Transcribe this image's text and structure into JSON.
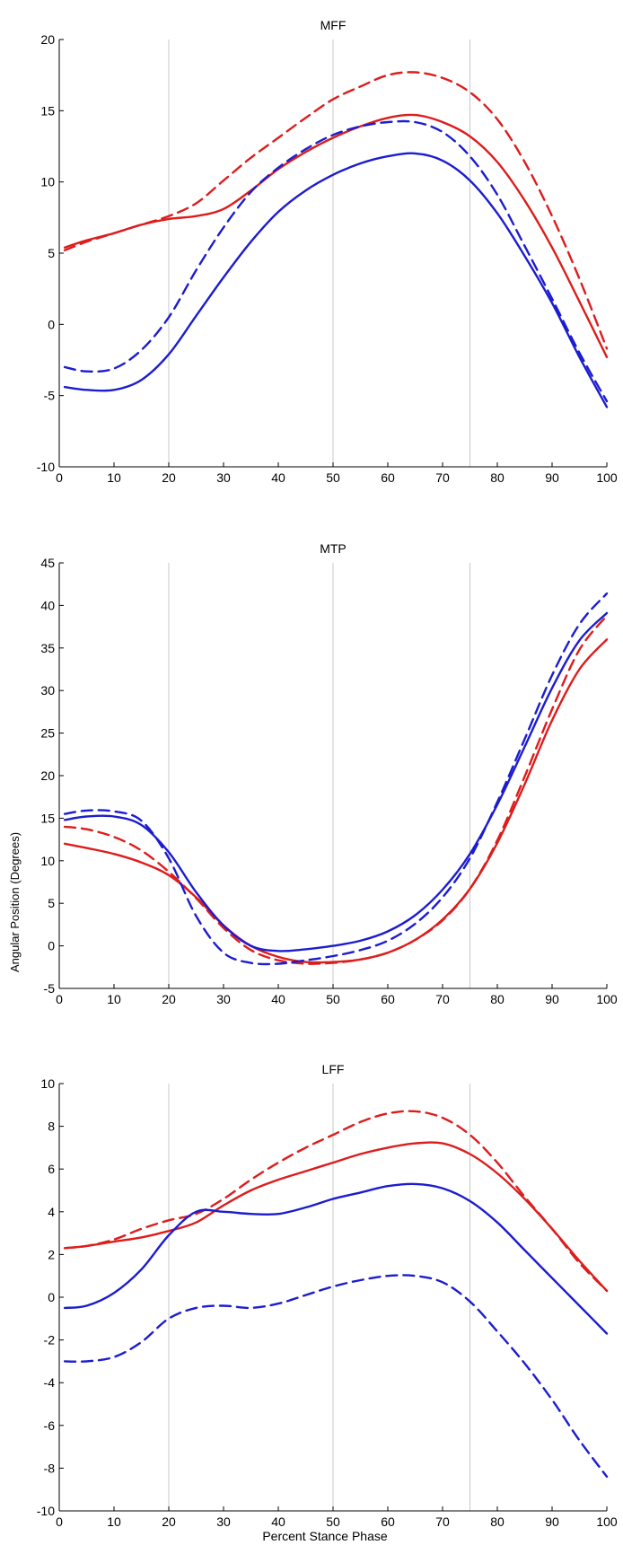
{
  "figure": {
    "ylabel": "Angular Position (Degrees)",
    "xlabel": "Percent Stance Phase"
  },
  "chart_data": [
    {
      "type": "line",
      "title": "MFF",
      "xlim": [
        0,
        100
      ],
      "ylim": [
        -10,
        20
      ],
      "xticks": [
        0,
        10,
        20,
        30,
        40,
        50,
        60,
        70,
        80,
        90,
        100
      ],
      "yticks": [
        -10,
        -5,
        0,
        5,
        10,
        15,
        20
      ],
      "vlines": [
        20,
        50,
        75
      ],
      "grid": false,
      "x": [
        1,
        5,
        10,
        15,
        20,
        25,
        30,
        35,
        40,
        45,
        50,
        55,
        60,
        65,
        70,
        75,
        80,
        85,
        90,
        95,
        100
      ],
      "series": [
        {
          "color": "#dd1c1c",
          "dash": "solid",
          "values": [
            5.4,
            5.9,
            6.4,
            7.0,
            7.4,
            7.6,
            8.1,
            9.4,
            10.9,
            12.1,
            13.1,
            13.9,
            14.5,
            14.7,
            14.2,
            13.2,
            11.4,
            8.7,
            5.4,
            1.6,
            -2.3
          ]
        },
        {
          "color": "#dd1c1c",
          "dash": "dashed",
          "values": [
            5.2,
            5.8,
            6.4,
            7.0,
            7.6,
            8.5,
            10.1,
            11.7,
            13.1,
            14.5,
            15.8,
            16.7,
            17.5,
            17.7,
            17.3,
            16.3,
            14.4,
            11.4,
            7.6,
            3.2,
            -1.7
          ]
        },
        {
          "color": "#1c1cd0",
          "dash": "solid",
          "values": [
            -4.4,
            -4.6,
            -4.6,
            -3.9,
            -2.1,
            0.6,
            3.3,
            5.8,
            7.9,
            9.4,
            10.5,
            11.3,
            11.8,
            12.0,
            11.5,
            10.1,
            7.8,
            4.8,
            1.5,
            -2.3,
            -5.8
          ]
        },
        {
          "color": "#1c1cd0",
          "dash": "dashed",
          "values": [
            -3.0,
            -3.3,
            -3.1,
            -1.8,
            0.5,
            3.8,
            6.8,
            9.3,
            11.0,
            12.3,
            13.3,
            13.9,
            14.2,
            14.2,
            13.5,
            11.8,
            9.1,
            5.5,
            1.8,
            -2.0,
            -5.4
          ]
        }
      ]
    },
    {
      "type": "line",
      "title": "MTP",
      "xlim": [
        0,
        100
      ],
      "ylim": [
        -5,
        45
      ],
      "xticks": [
        0,
        10,
        20,
        30,
        40,
        50,
        60,
        70,
        80,
        90,
        100
      ],
      "yticks": [
        -5,
        0,
        5,
        10,
        15,
        20,
        25,
        30,
        35,
        40,
        45
      ],
      "vlines": [
        20,
        50,
        75
      ],
      "grid": false,
      "x": [
        1,
        5,
        10,
        15,
        20,
        25,
        30,
        35,
        40,
        45,
        50,
        55,
        60,
        65,
        70,
        75,
        80,
        85,
        90,
        95,
        100
      ],
      "series": [
        {
          "color": "#dd1c1c",
          "dash": "solid",
          "values": [
            12.0,
            11.5,
            10.8,
            9.8,
            8.3,
            5.7,
            2.4,
            0.0,
            -1.3,
            -1.9,
            -1.9,
            -1.6,
            -0.8,
            0.7,
            3.1,
            6.7,
            12.1,
            19.0,
            26.5,
            32.5,
            36.0
          ]
        },
        {
          "color": "#dd1c1c",
          "dash": "dashed",
          "values": [
            14.0,
            13.7,
            12.8,
            11.2,
            8.7,
            5.6,
            2.1,
            -0.5,
            -1.7,
            -2.1,
            -2.0,
            -1.6,
            -0.8,
            0.7,
            3.0,
            6.7,
            12.4,
            19.9,
            27.8,
            34.8,
            38.8
          ]
        },
        {
          "color": "#1c1cd0",
          "dash": "solid",
          "values": [
            14.8,
            15.2,
            15.2,
            14.2,
            11.0,
            6.3,
            2.4,
            0.0,
            -0.6,
            -0.4,
            0.0,
            0.6,
            1.7,
            3.6,
            6.6,
            10.8,
            16.6,
            23.4,
            30.3,
            35.9,
            39.1
          ]
        },
        {
          "color": "#1c1cd0",
          "dash": "dashed",
          "values": [
            15.5,
            15.9,
            15.8,
            14.7,
            10.3,
            3.5,
            -0.8,
            -2.0,
            -2.1,
            -1.7,
            -1.2,
            -0.5,
            0.6,
            2.6,
            5.7,
            10.3,
            16.9,
            24.3,
            31.8,
            37.8,
            41.4
          ]
        }
      ]
    },
    {
      "type": "line",
      "title": "LFF",
      "xlim": [
        0,
        100
      ],
      "ylim": [
        -10,
        10
      ],
      "xticks": [
        0,
        10,
        20,
        30,
        40,
        50,
        60,
        70,
        80,
        90,
        100
      ],
      "yticks": [
        -10,
        -8,
        -6,
        -4,
        -2,
        0,
        2,
        4,
        6,
        8,
        10
      ],
      "vlines": [
        20,
        50,
        75
      ],
      "grid": false,
      "x": [
        1,
        5,
        10,
        15,
        20,
        25,
        30,
        35,
        40,
        45,
        50,
        55,
        60,
        65,
        70,
        75,
        80,
        85,
        90,
        95,
        100
      ],
      "series": [
        {
          "color": "#dd1c1c",
          "dash": "solid",
          "values": [
            2.3,
            2.4,
            2.6,
            2.8,
            3.1,
            3.5,
            4.3,
            5.0,
            5.5,
            5.9,
            6.3,
            6.7,
            7.0,
            7.2,
            7.2,
            6.7,
            5.8,
            4.6,
            3.2,
            1.7,
            0.3
          ]
        },
        {
          "color": "#dd1c1c",
          "dash": "dashed",
          "values": [
            2.3,
            2.4,
            2.7,
            3.2,
            3.6,
            3.9,
            4.6,
            5.5,
            6.3,
            7.0,
            7.6,
            8.2,
            8.6,
            8.7,
            8.4,
            7.6,
            6.3,
            4.7,
            3.2,
            1.6,
            0.3
          ]
        },
        {
          "color": "#1c1cd0",
          "dash": "solid",
          "values": [
            -0.5,
            -0.4,
            0.2,
            1.3,
            2.9,
            4.0,
            4.0,
            3.9,
            3.9,
            4.2,
            4.6,
            4.9,
            5.2,
            5.3,
            5.1,
            4.5,
            3.5,
            2.2,
            0.9,
            -0.4,
            -1.7
          ]
        },
        {
          "color": "#1c1cd0",
          "dash": "dashed",
          "values": [
            -3.0,
            -3.0,
            -2.8,
            -2.1,
            -1.0,
            -0.5,
            -0.4,
            -0.5,
            -0.3,
            0.1,
            0.5,
            0.8,
            1.0,
            1.0,
            0.7,
            -0.2,
            -1.6,
            -3.1,
            -4.8,
            -6.7,
            -8.4
          ]
        }
      ]
    }
  ]
}
